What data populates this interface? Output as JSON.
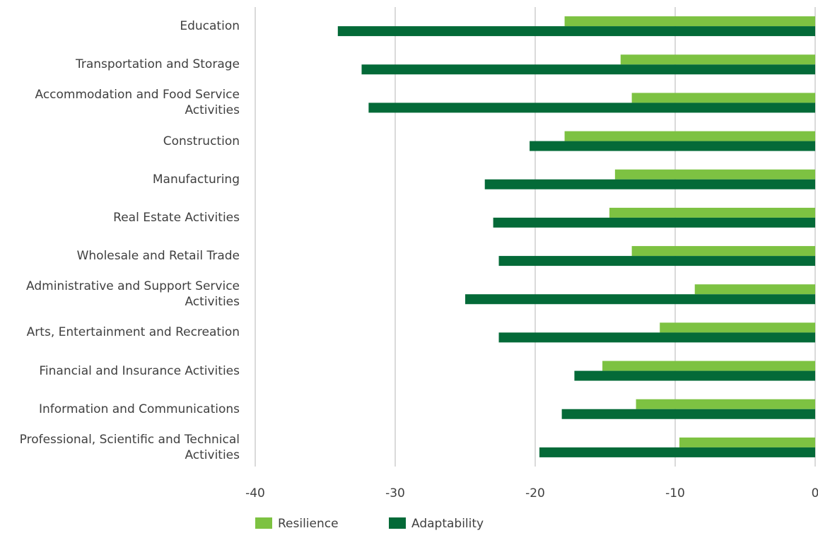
{
  "chart_data": {
    "type": "hbar",
    "categories": [
      "Education",
      "Transportation and Storage",
      "Accommodation and Food Service Activities",
      "Construction",
      "Manufacturing",
      "Real Estate Activities",
      "Wholesale and Retail Trade",
      "Administrative and Support Service Activities",
      "Arts, Entertainment and Recreation",
      "Financial and Insurance Activities",
      "Information and Communications",
      "Professional, Scientific and Technical Activities"
    ],
    "series": [
      {
        "name": "Resilience",
        "color": "#7dc242",
        "values": [
          -17.9,
          -13.9,
          -13.1,
          -17.9,
          -14.3,
          -14.7,
          -13.1,
          -8.6,
          -11.1,
          -15.2,
          -12.8,
          -9.7
        ]
      },
      {
        "name": "Adaptability",
        "color": "#046a38",
        "values": [
          -34.1,
          -32.4,
          -31.9,
          -20.4,
          -23.6,
          -23.0,
          -22.6,
          -25.0,
          -22.6,
          -17.2,
          -18.1,
          -19.7
        ]
      }
    ],
    "xlim": [
      -40,
      0
    ],
    "xticks": [
      -40,
      -30,
      -20,
      -10,
      0
    ],
    "grid": true,
    "legend": "bottom"
  }
}
